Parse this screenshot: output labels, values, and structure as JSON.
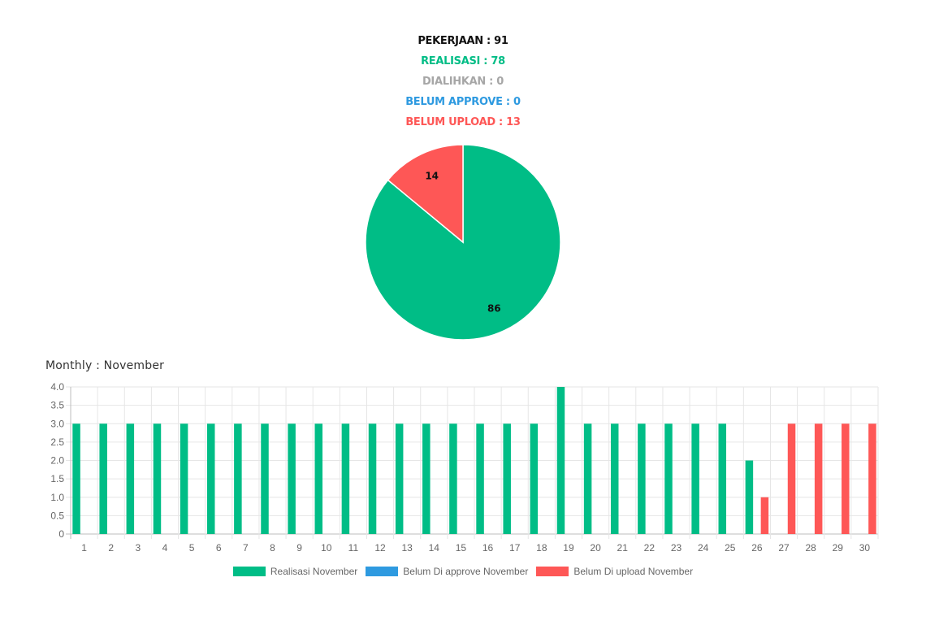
{
  "summary": {
    "pekerjaan": "PEKERJAAN : 91",
    "realisasi": "REALISASI : 78",
    "dialihkan": "DIALIHKAN : 0",
    "belum_approve": "BELUM APPROVE : 0",
    "belum_upload": "BELUM UPLOAD : 13"
  },
  "colors": {
    "realisasi": "#00bd86",
    "belum_approve": "#2e9ae0",
    "belum_upload": "#fe5756",
    "dialihkan": "#a6a6a6"
  },
  "monthly_title": "Monthly : November",
  "chart_data": [
    {
      "type": "pie",
      "slices": [
        {
          "label": "86",
          "value": 86,
          "color": "#00bd86"
        },
        {
          "label": "14",
          "value": 14,
          "color": "#fe5756"
        }
      ]
    },
    {
      "type": "bar",
      "categories": [
        "1",
        "2",
        "3",
        "4",
        "5",
        "6",
        "7",
        "8",
        "9",
        "10",
        "11",
        "12",
        "13",
        "14",
        "15",
        "16",
        "17",
        "18",
        "19",
        "20",
        "21",
        "22",
        "23",
        "24",
        "25",
        "26",
        "27",
        "28",
        "29",
        "30"
      ],
      "series": [
        {
          "name": "Realisasi November",
          "color": "#00bd86",
          "values": [
            3,
            3,
            3,
            3,
            3,
            3,
            3,
            3,
            3,
            3,
            3,
            3,
            3,
            3,
            3,
            3,
            3,
            3,
            4,
            3,
            3,
            3,
            3,
            3,
            3,
            2,
            0,
            0,
            0,
            0
          ]
        },
        {
          "name": "Belum Di approve November",
          "color": "#2e9ae0",
          "values": [
            0,
            0,
            0,
            0,
            0,
            0,
            0,
            0,
            0,
            0,
            0,
            0,
            0,
            0,
            0,
            0,
            0,
            0,
            0,
            0,
            0,
            0,
            0,
            0,
            0,
            0,
            0,
            0,
            0,
            0
          ]
        },
        {
          "name": "Belum Di upload November",
          "color": "#fe5756",
          "values": [
            0,
            0,
            0,
            0,
            0,
            0,
            0,
            0,
            0,
            0,
            0,
            0,
            0,
            0,
            0,
            0,
            0,
            0,
            0,
            0,
            0,
            0,
            0,
            0,
            0,
            1,
            3,
            3,
            3,
            3
          ]
        }
      ],
      "ylim": [
        0,
        4
      ],
      "yticks": [
        "0",
        "0.5",
        "1.0",
        "1.5",
        "2.0",
        "2.5",
        "3.0",
        "3.5",
        "4.0"
      ],
      "grid": true,
      "legend": "bottom"
    }
  ]
}
